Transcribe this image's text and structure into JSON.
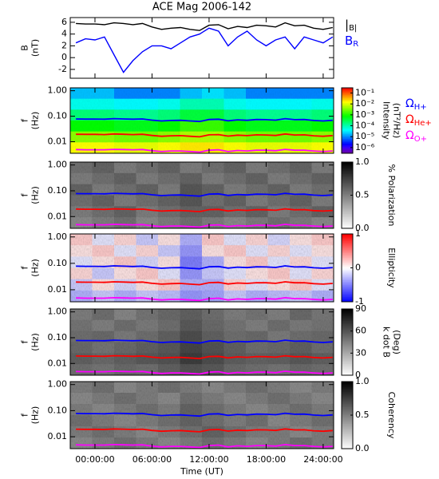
{
  "chart_data": [
    {
      "type": "line",
      "title": "ACE Mag 2006-142",
      "ylabel": [
        "B",
        "(nT)"
      ],
      "x": [
        -2,
        -1,
        0,
        1,
        2,
        3,
        4,
        5,
        6,
        7,
        8,
        9,
        10,
        11,
        12,
        13,
        14,
        15,
        16,
        17,
        18,
        19,
        20,
        21,
        22,
        23,
        24,
        25
      ],
      "xlim": [
        -2.6,
        25.1
      ],
      "ylim": [
        -3.5,
        6.8
      ],
      "yticks": [
        -2,
        0,
        2,
        4,
        6
      ],
      "series": [
        {
          "name": "|B|",
          "color": "#000000",
          "values": [
            5.8,
            5.7,
            5.7,
            5.6,
            5.9,
            5.8,
            5.6,
            5.8,
            5.2,
            4.8,
            5.0,
            5.1,
            4.8,
            4.6,
            5.5,
            5.6,
            4.9,
            5.3,
            5.1,
            5.5,
            5.4,
            5.2,
            5.9,
            5.4,
            5.5,
            5.0,
            4.8,
            5.1
          ]
        },
        {
          "name": "BR",
          "color": "#0000ff",
          "values": [
            2.5,
            3.2,
            3,
            3.5,
            0.5,
            -2.5,
            -0.5,
            1,
            2,
            2,
            1.5,
            2.5,
            3.5,
            4,
            5,
            4.5,
            2,
            3.5,
            4.5,
            3,
            2,
            3,
            3.5,
            1.5,
            3.5,
            3,
            2.5,
            3.5
          ]
        }
      ]
    },
    {
      "type": "heatmap",
      "ylabel": [
        "f",
        "(Hz)"
      ],
      "ylog": true,
      "ylim": [
        0.0035,
        1.3
      ],
      "xlim": [
        -2.6,
        25.1
      ],
      "yticks": [
        {
          "value": 1,
          "label": "1.00"
        },
        {
          "value": 0.1,
          "label": "0.10"
        },
        {
          "value": 0.01,
          "label": "0.01"
        }
      ],
      "colormap": "rainbow",
      "zlog": true,
      "zlim": [
        3e-07,
        0.3
      ],
      "zlabel": [
        "Intensity",
        "(nT²/Hz)"
      ],
      "zticks": [
        {
          "value": 0.1,
          "label": "10⁻¹"
        },
        {
          "value": 0.01,
          "label": "10⁻²"
        },
        {
          "value": 0.001,
          "label": "10⁻³"
        },
        {
          "value": 0.0001,
          "label": "10⁻⁴"
        },
        {
          "value": 1e-05,
          "label": "10⁻⁵"
        },
        {
          "value": 1e-06,
          "label": "10⁻⁶"
        }
      ],
      "z": [
        [
          2e-05,
          2e-05,
          1e-05,
          1e-05,
          1e-05,
          2e-05,
          3e-05,
          2e-05,
          1e-05,
          1e-05,
          1e-05,
          1e-05
        ],
        [
          5e-05,
          5e-05,
          4e-05,
          4e-05,
          5e-05,
          0.0001,
          0.0001,
          5e-05,
          4e-05,
          4e-05,
          4e-05,
          5e-05
        ],
        [
          0.0002,
          0.0002,
          0.00015,
          0.00015,
          0.0002,
          0.0004,
          0.0004,
          0.0002,
          0.00015,
          0.00015,
          0.00015,
          0.0002
        ],
        [
          0.0008,
          0.0008,
          0.0006,
          0.0006,
          0.0008,
          0.0015,
          0.0015,
          0.0008,
          0.0006,
          0.0006,
          0.0006,
          0.0008
        ],
        [
          0.004,
          0.004,
          0.003,
          0.003,
          0.004,
          0.006,
          0.006,
          0.004,
          0.003,
          0.003,
          0.003,
          0.004
        ],
        [
          0.015,
          0.015,
          0.012,
          0.012,
          0.015,
          0.02,
          0.02,
          0.015,
          0.012,
          0.012,
          0.012,
          0.015
        ]
      ],
      "series": [
        {
          "name": "ΩH+",
          "color": "#0000ff",
          "values": [
            0.078,
            0.077,
            0.077,
            0.076,
            0.08,
            0.078,
            0.076,
            0.078,
            0.07,
            0.065,
            0.068,
            0.069,
            0.065,
            0.062,
            0.074,
            0.076,
            0.066,
            0.072,
            0.069,
            0.074,
            0.073,
            0.07,
            0.08,
            0.073,
            0.074,
            0.068,
            0.065,
            0.069
          ]
        },
        {
          "name": "ΩHe+",
          "color": "#ff0000",
          "values": [
            0.0195,
            0.0193,
            0.0193,
            0.019,
            0.02,
            0.0195,
            0.019,
            0.0195,
            0.0175,
            0.0163,
            0.017,
            0.0173,
            0.0163,
            0.0155,
            0.0185,
            0.019,
            0.0165,
            0.018,
            0.0173,
            0.0185,
            0.0183,
            0.0175,
            0.02,
            0.0183,
            0.0185,
            0.017,
            0.0163,
            0.0173
          ]
        },
        {
          "name": "ΩO+",
          "color": "#ff00ff",
          "values": [
            0.0049,
            0.0048,
            0.0048,
            0.0048,
            0.005,
            0.0049,
            0.0048,
            0.0049,
            0.0044,
            0.0041,
            0.0043,
            0.0043,
            0.0041,
            0.0039,
            0.0046,
            0.0048,
            0.0041,
            0.0045,
            0.0043,
            0.0046,
            0.0046,
            0.0044,
            0.005,
            0.0046,
            0.0046,
            0.0043,
            0.0041,
            0.0043
          ]
        }
      ]
    },
    {
      "type": "heatmap",
      "ylabel": [
        "f",
        "(Hz)"
      ],
      "ylog": true,
      "ylim": [
        0.0035,
        1.3
      ],
      "xlim": [
        -2.6,
        25.1
      ],
      "yticks": [
        {
          "value": 1,
          "label": "1.00"
        },
        {
          "value": 0.1,
          "label": "0.10"
        },
        {
          "value": 0.01,
          "label": "0.01"
        }
      ],
      "colormap": "gray",
      "zlim": [
        0,
        1
      ],
      "zlabel": [
        "% Polarization"
      ],
      "zticks": [
        {
          "value": 0,
          "label": "0.0"
        },
        {
          "value": 0.5,
          "label": "0.5"
        },
        {
          "value": 1,
          "label": "1.0"
        }
      ],
      "z": [
        [
          0.55,
          0.6,
          0.5,
          0.55,
          0.6,
          0.5,
          0.55,
          0.6,
          0.5,
          0.55,
          0.6,
          0.5
        ],
        [
          0.5,
          0.55,
          0.6,
          0.5,
          0.55,
          0.6,
          0.5,
          0.55,
          0.6,
          0.5,
          0.55,
          0.6
        ],
        [
          0.6,
          0.5,
          0.55,
          0.6,
          0.5,
          0.65,
          0.6,
          0.5,
          0.55,
          0.6,
          0.5,
          0.55
        ],
        [
          0.55,
          0.6,
          0.5,
          0.55,
          0.6,
          0.65,
          0.55,
          0.6,
          0.5,
          0.55,
          0.6,
          0.5
        ],
        [
          0.5,
          0.55,
          0.6,
          0.5,
          0.55,
          0.6,
          0.6,
          0.55,
          0.6,
          0.5,
          0.55,
          0.6
        ],
        [
          0.45,
          0.5,
          0.55,
          0.45,
          0.5,
          0.55,
          0.5,
          0.45,
          0.5,
          0.55,
          0.5,
          0.45
        ]
      ]
    },
    {
      "type": "heatmap",
      "ylabel": [
        "f",
        "(Hz)"
      ],
      "ylog": true,
      "ylim": [
        0.0035,
        1.3
      ],
      "xlim": [
        -2.6,
        25.1
      ],
      "yticks": [
        {
          "value": 1,
          "label": "1.00"
        },
        {
          "value": 0.1,
          "label": "0.10"
        },
        {
          "value": 0.01,
          "label": "0.01"
        }
      ],
      "colormap": "bwr",
      "zlim": [
        -1,
        1
      ],
      "zlabel": [
        "Ellipticity"
      ],
      "zticks": [
        -1,
        0,
        1
      ],
      "z": [
        [
          0.2,
          -0.1,
          0.15,
          -0.2,
          0.1,
          -0.3,
          0.2,
          -0.1,
          0.15,
          -0.15,
          0.1,
          0.2
        ],
        [
          0.1,
          0.2,
          -0.1,
          0.15,
          -0.2,
          -0.4,
          0.1,
          0.2,
          -0.1,
          0.15,
          -0.1,
          0.1
        ],
        [
          -0.1,
          0.1,
          0.2,
          -0.15,
          0.1,
          -0.5,
          -0.3,
          0.1,
          0.2,
          -0.1,
          0.15,
          -0.1
        ],
        [
          0.15,
          -0.2,
          0.1,
          0.2,
          -0.1,
          -0.4,
          -0.2,
          -0.1,
          0.1,
          0.2,
          -0.1,
          0.15
        ],
        [
          -0.2,
          0.1,
          -0.15,
          0.1,
          0.2,
          -0.3,
          -0.3,
          0.15,
          -0.1,
          0.1,
          0.2,
          -0.1
        ],
        [
          -0.3,
          -0.2,
          -0.3,
          -0.2,
          -0.25,
          -0.4,
          -0.35,
          -0.2,
          -0.3,
          -0.25,
          -0.2,
          -0.3
        ]
      ]
    },
    {
      "type": "heatmap",
      "ylabel": [
        "f",
        "(Hz)"
      ],
      "ylog": true,
      "ylim": [
        0.0035,
        1.3
      ],
      "xlim": [
        -2.6,
        25.1
      ],
      "yticks": [
        {
          "value": 1,
          "label": "1.00"
        },
        {
          "value": 0.1,
          "label": "0.10"
        },
        {
          "value": 0.01,
          "label": "0.01"
        }
      ],
      "colormap": "gray",
      "zlim": [
        0,
        90
      ],
      "zlabel": [
        "k dot B",
        "(Deg)"
      ],
      "zticks": [
        0,
        30,
        60,
        90
      ],
      "z": [
        [
          45,
          50,
          42,
          48,
          52,
          55,
          50,
          45,
          48,
          44,
          52,
          47
        ],
        [
          48,
          44,
          50,
          46,
          50,
          58,
          52,
          48,
          44,
          50,
          46,
          48
        ],
        [
          50,
          52,
          46,
          50,
          55,
          62,
          55,
          50,
          52,
          46,
          50,
          52
        ],
        [
          52,
          48,
          52,
          55,
          58,
          65,
          60,
          55,
          50,
          52,
          55,
          50
        ],
        [
          55,
          52,
          55,
          58,
          60,
          68,
          62,
          56,
          54,
          55,
          58,
          55
        ],
        [
          50,
          48,
          52,
          50,
          55,
          60,
          58,
          52,
          50,
          48,
          52,
          50
        ]
      ]
    },
    {
      "type": "heatmap",
      "ylabel": [
        "f",
        "(Hz)"
      ],
      "ylog": true,
      "ylim": [
        0.0035,
        1.3
      ],
      "xlim": [
        -2.6,
        25.1
      ],
      "yticks": [
        {
          "value": 1,
          "label": "1.00"
        },
        {
          "value": 0.1,
          "label": "0.10"
        },
        {
          "value": 0.01,
          "label": "0.01"
        }
      ],
      "colormap": "gray",
      "zlim": [
        0,
        1
      ],
      "zlabel": [
        "Coherency"
      ],
      "zticks": [
        {
          "value": 0,
          "label": "0.0"
        },
        {
          "value": 0.5,
          "label": "0.5"
        },
        {
          "value": 1,
          "label": "1.0"
        }
      ],
      "z": [
        [
          0.5,
          0.55,
          0.45,
          0.5,
          0.55,
          0.5,
          0.45,
          0.5,
          0.55,
          0.5,
          0.45,
          0.5
        ],
        [
          0.45,
          0.5,
          0.55,
          0.5,
          0.45,
          0.55,
          0.5,
          0.45,
          0.5,
          0.55,
          0.5,
          0.45
        ],
        [
          0.5,
          0.45,
          0.5,
          0.55,
          0.5,
          0.6,
          0.55,
          0.5,
          0.45,
          0.5,
          0.55,
          0.5
        ],
        [
          0.55,
          0.5,
          0.45,
          0.5,
          0.55,
          0.6,
          0.55,
          0.5,
          0.55,
          0.45,
          0.5,
          0.55
        ],
        [
          0.5,
          0.55,
          0.5,
          0.45,
          0.5,
          0.55,
          0.6,
          0.55,
          0.5,
          0.5,
          0.45,
          0.5
        ],
        [
          0.45,
          0.5,
          0.55,
          0.5,
          0.45,
          0.5,
          0.55,
          0.5,
          0.45,
          0.5,
          0.55,
          0.5
        ]
      ],
      "xlabel": "Time (UT)",
      "xticks": [
        {
          "value": 0,
          "label": "00:00:00"
        },
        {
          "value": 6,
          "label": "06:00:00"
        },
        {
          "value": 12,
          "label": "12:00:00"
        },
        {
          "value": 18,
          "label": "18:00:00"
        },
        {
          "value": 24,
          "label": "24:00:00"
        }
      ]
    }
  ]
}
